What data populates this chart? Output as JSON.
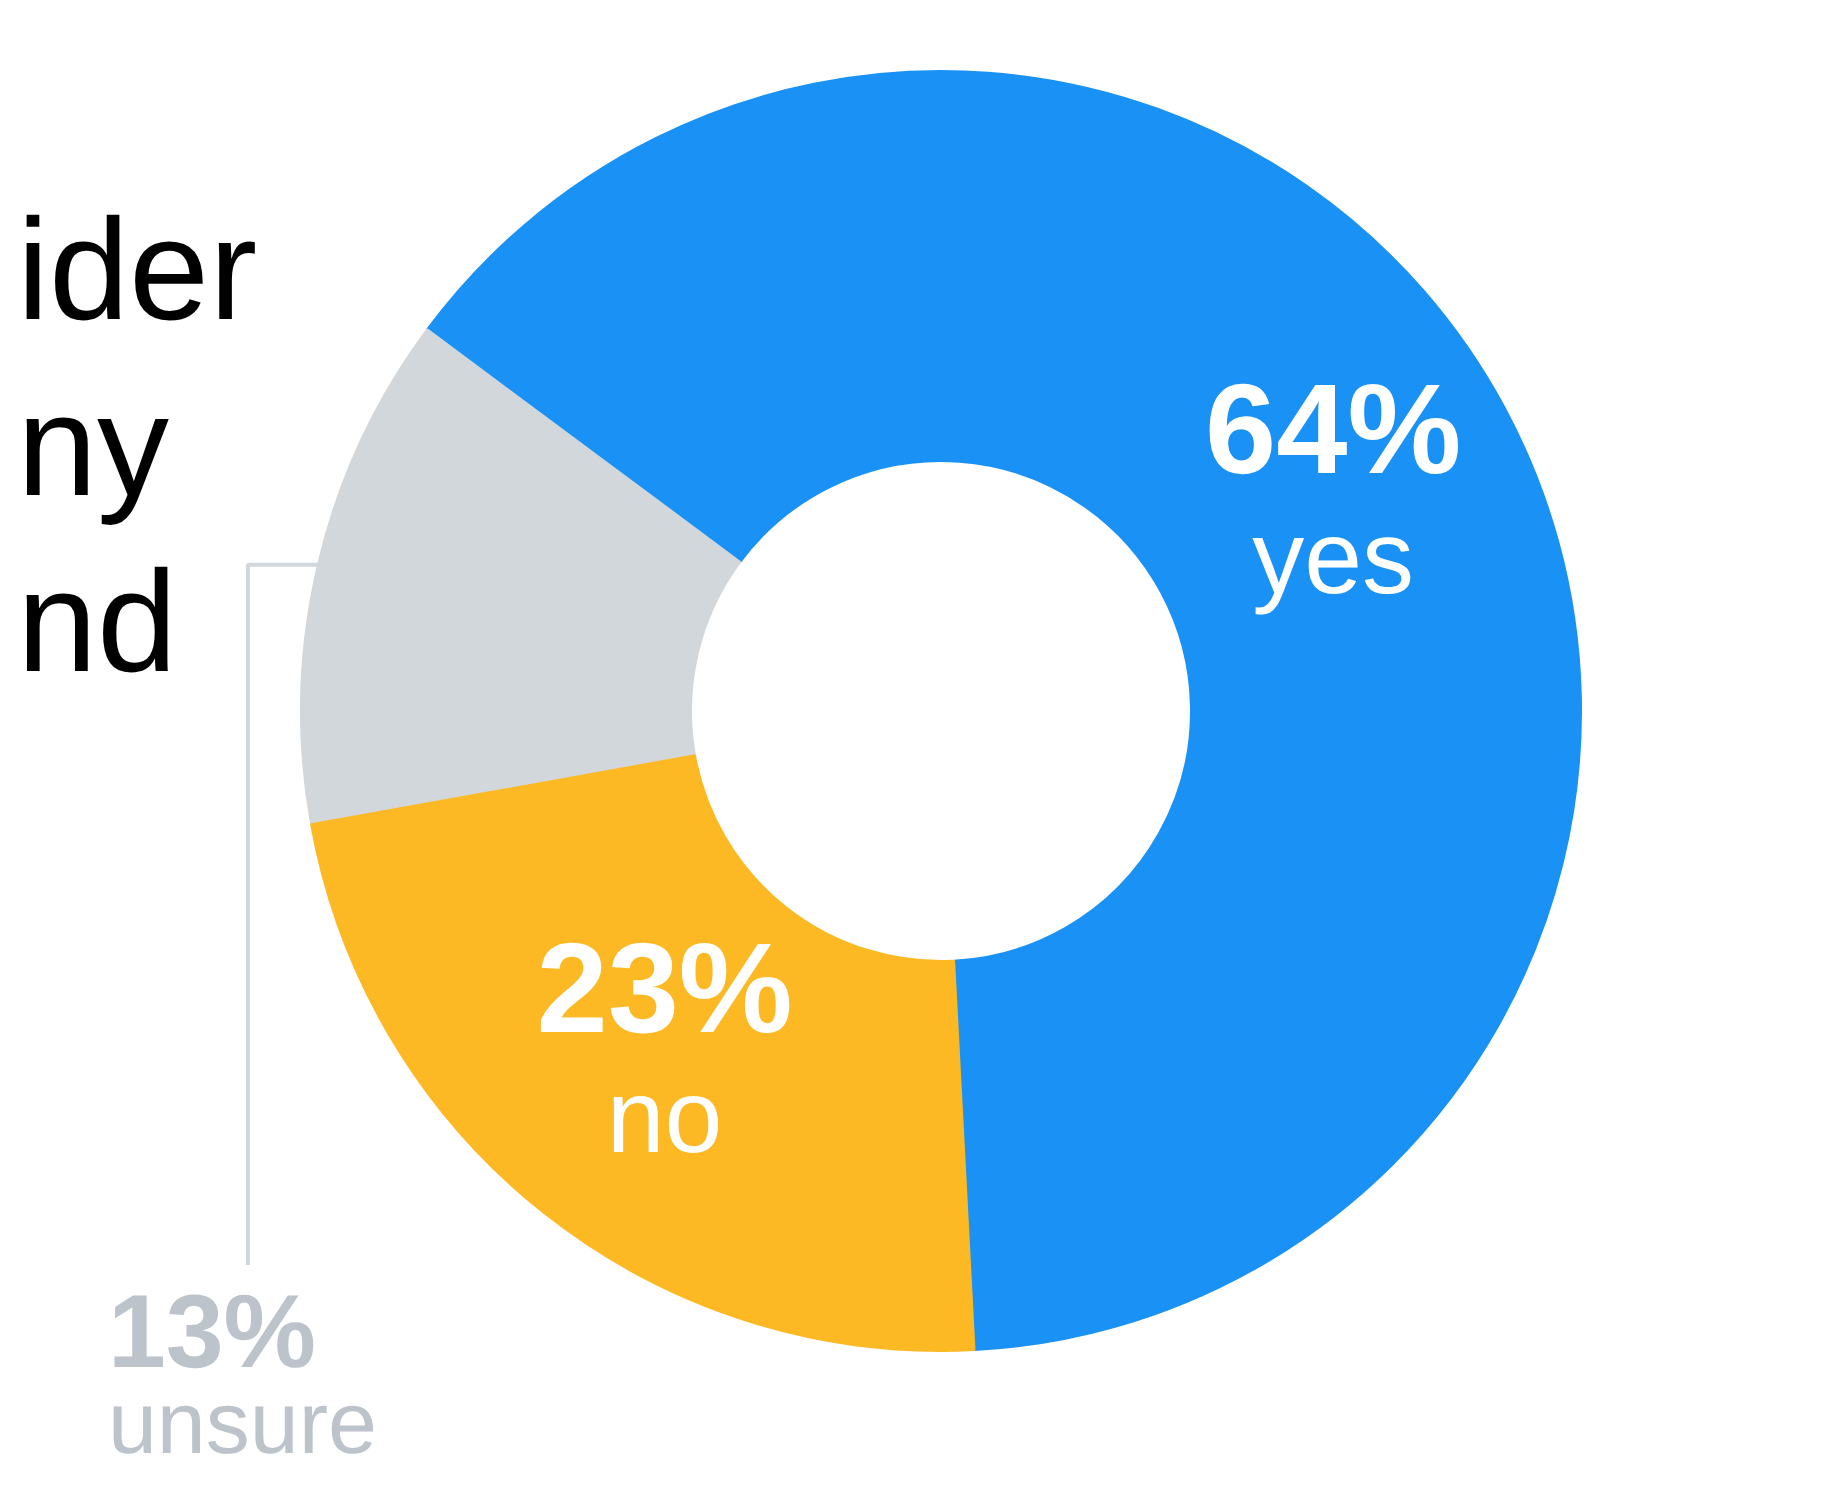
{
  "chart_data": {
    "type": "donut",
    "title": "ider\nny\nnd",
    "categories": [
      "yes",
      "unsure",
      "no"
    ],
    "values": [
      64,
      13,
      23
    ],
    "colors": [
      "#1a91f5",
      "#d2d7dc",
      "#fdb924"
    ],
    "value_labels": [
      "64%",
      "13%",
      "23%"
    ]
  }
}
